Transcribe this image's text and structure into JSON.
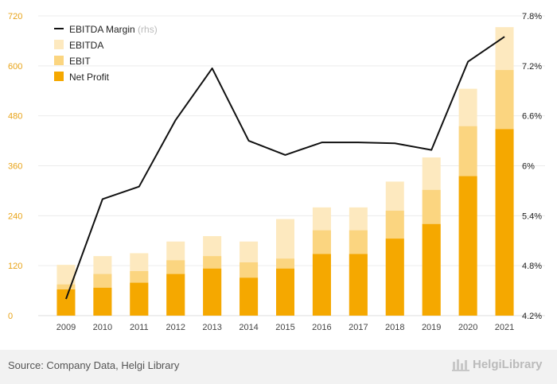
{
  "chart_data": {
    "type": "bar",
    "stacked": true,
    "categories": [
      "2009",
      "2010",
      "2011",
      "2012",
      "2013",
      "2014",
      "2015",
      "2016",
      "2017",
      "2018",
      "2019",
      "2020",
      "2021"
    ],
    "series": [
      {
        "name": "Net Profit",
        "color": "#f5a800",
        "values": [
          63,
          67,
          79,
          100,
          113,
          91,
          113,
          148,
          148,
          185,
          220,
          335,
          448
        ]
      },
      {
        "name": "EBIT",
        "color": "#fbd580",
        "values": [
          75,
          100,
          107,
          133,
          143,
          128,
          137,
          205,
          205,
          252,
          302,
          455,
          590
        ]
      },
      {
        "name": "EBITDA",
        "color": "#fde9bf",
        "values": [
          122,
          143,
          150,
          178,
          191,
          178,
          232,
          260,
          260,
          322,
          380,
          545,
          693
        ]
      },
      {
        "name": "EBITDA Margin",
        "axis": "right",
        "color": "#111111",
        "values": [
          4.4,
          5.6,
          5.75,
          6.55,
          7.17,
          6.3,
          6.13,
          6.28,
          6.28,
          6.27,
          6.19,
          7.25,
          7.55
        ]
      }
    ],
    "left_axis": {
      "min": 0,
      "max": 720,
      "ticks": [
        "0",
        "120",
        "240",
        "360",
        "480",
        "600",
        "720"
      ]
    },
    "right_axis": {
      "min": 4.2,
      "max": 7.8,
      "ticks": [
        "4.2%",
        "4.8%",
        "5.4%",
        "6%",
        "6.6%",
        "7.2%",
        "7.8%"
      ]
    },
    "legend": {
      "position": "top-left",
      "items": [
        {
          "label": "EBITDA Margin",
          "suffix": "(rhs)",
          "kind": "line",
          "color": "#111111"
        },
        {
          "label": "EBITDA",
          "kind": "box",
          "color": "#fde9bf"
        },
        {
          "label": "EBIT",
          "kind": "box",
          "color": "#fbd580"
        },
        {
          "label": "Net Profit",
          "kind": "box",
          "color": "#f5a800"
        }
      ]
    },
    "left_tick_color": "#e8a317",
    "right_tick_color": "#222222",
    "grid": true
  },
  "footer": {
    "source": "Source: Company Data, Helgi Library",
    "brand": "HelgiLibrary"
  }
}
